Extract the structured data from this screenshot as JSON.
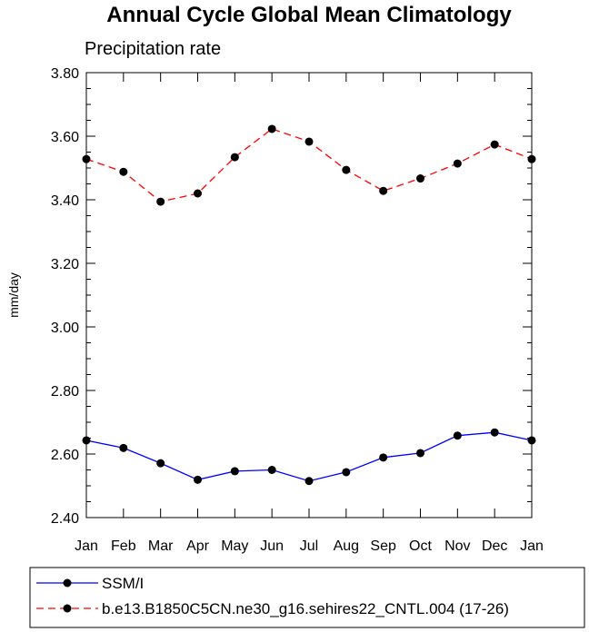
{
  "chart_data": {
    "type": "line",
    "title": "Annual Cycle Global Mean Climatology",
    "subtitle": "Precipitation rate",
    "xlabel": "",
    "ylabel": "mm/day",
    "categories": [
      "Jan",
      "Feb",
      "Mar",
      "Apr",
      "May",
      "Jun",
      "Jul",
      "Aug",
      "Sep",
      "Oct",
      "Nov",
      "Dec",
      "Jan"
    ],
    "yticks": [
      "2.40",
      "2.60",
      "2.80",
      "3.00",
      "3.20",
      "3.40",
      "3.60",
      "3.80"
    ],
    "ylim": [
      2.4,
      3.8
    ],
    "grid": false,
    "legend_position": "bottom",
    "series": [
      {
        "name": "SSM/I",
        "color": "#0000ff",
        "line_style": "solid",
        "marker": "filled-circle",
        "values": [
          2.643,
          2.619,
          2.571,
          2.519,
          2.546,
          2.55,
          2.515,
          2.543,
          2.589,
          2.603,
          2.658,
          2.668,
          2.643
        ]
      },
      {
        "name": "b.e13.B1850C5CN.ne30_g16.sehires22_CNTL.004 (17-26)",
        "color": "#ff0000",
        "line_style": "dashed",
        "marker": "filled-circle",
        "values": [
          3.528,
          3.488,
          3.394,
          3.42,
          3.534,
          3.623,
          3.583,
          3.494,
          3.428,
          3.467,
          3.514,
          3.574,
          3.528
        ]
      }
    ]
  }
}
